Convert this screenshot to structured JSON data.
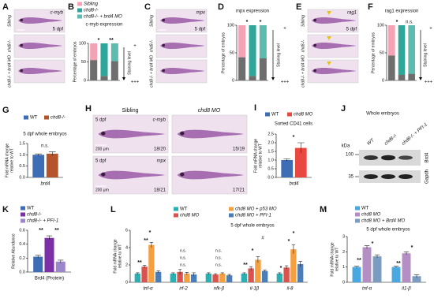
{
  "images": {
    "A": {
      "panel": "A",
      "marker": "c-myb",
      "age": "5 dpf",
      "rows": [
        "Sibling",
        "chd8-/-",
        "chd8-/- + brd4 MO"
      ]
    },
    "C": {
      "panel": "C",
      "marker": "mpx",
      "age": "5 dpf",
      "rows": [
        "Sibling",
        "chd8-/-",
        "chd8-/- + brd4 MO"
      ]
    },
    "E": {
      "panel": "E",
      "marker": "rag1",
      "age": "5 dpf",
      "rows": [
        "Sibling",
        "chd8-/-",
        "chd8-/- + brd4 MO"
      ]
    },
    "H": {
      "panel": "H",
      "columns": [
        "Sibling",
        "chd8 MO"
      ],
      "rows": [
        {
          "age": "5 dpf",
          "marker": "c-myb",
          "scale": "200 μm",
          "counts": [
            "18/20",
            "15/19"
          ]
        },
        {
          "age": "5 dpf",
          "marker": "mpx",
          "scale": "200 μm",
          "counts": [
            "18/21",
            "17/21"
          ]
        }
      ]
    },
    "J": {
      "panel": "J",
      "title": "Whole embryos",
      "unit": "kDa",
      "lanes": [
        "WT",
        "chd8-/-",
        "chd8-/- + PFI-1"
      ],
      "sizes": [
        100,
        35
      ],
      "bands": [
        "Brd4",
        "Gapdh"
      ]
    }
  },
  "chart_data": [
    {
      "panel": "B",
      "type": "bar",
      "stacked": true,
      "title": "c-myb expression",
      "ylabel": "Percentage of embryos",
      "categories": [
        null,
        null,
        null
      ],
      "legend": [
        {
          "name": "Sibling",
          "color": "#f4a3b4"
        },
        {
          "name": "chd8-/-",
          "color": "#2ea79a"
        },
        {
          "name": "chd8-/- + brd4 MO",
          "color": "#5dbbb0"
        }
      ],
      "series": [
        {
          "color": "#6e6e6e",
          "values": [
            55,
            12,
            52
          ]
        },
        {
          "colors": [
            "#f4a3b4",
            "#2ea79a",
            "#5dbbb0"
          ],
          "values": [
            45,
            88,
            48
          ]
        }
      ],
      "ylim": [
        0,
        100
      ],
      "yticks": [
        0,
        50,
        100
      ],
      "annotations": [
        "*",
        "**",
        "Staining level",
        "+",
        "+++"
      ]
    },
    {
      "panel": "D",
      "type": "bar",
      "stacked": true,
      "title": "mpx expression",
      "ylabel": "Percentage of embryos",
      "categories": [
        null,
        null,
        null
      ],
      "series": [
        {
          "color": "#6e6e6e",
          "values": [
            42,
            8,
            40
          ]
        },
        {
          "colors": [
            "#f4a3b4",
            "#2ea79a",
            "#5dbbb0"
          ],
          "values": [
            58,
            92,
            60
          ]
        }
      ],
      "ylim": [
        0,
        100
      ],
      "yticks": [
        0,
        50,
        100
      ],
      "annotations": [
        "*",
        "*",
        "Staining level",
        "+",
        "+++"
      ]
    },
    {
      "panel": "F",
      "type": "bar",
      "stacked": true,
      "title": "rag1 expression",
      "ylabel": "Percentage of embryos",
      "categories": [
        null,
        null,
        null
      ],
      "series": [
        {
          "color": "#6e6e6e",
          "values": [
            45,
            10,
            12
          ]
        },
        {
          "colors": [
            "#f4a3b4",
            "#2ea79a",
            "#5dbbb0"
          ],
          "values": [
            55,
            90,
            88
          ]
        }
      ],
      "ylim": [
        0,
        100
      ],
      "yticks": [
        0,
        50,
        100
      ],
      "annotations": [
        "*",
        "n.s.",
        "Staining level",
        "+",
        "+++"
      ]
    },
    {
      "panel": "G",
      "type": "bar",
      "title": "5 dpf whole embryos",
      "ylabel": [
        "Fold mRNA change",
        "relative to WT"
      ],
      "categories": [
        "brd4"
      ],
      "series": [
        {
          "name": "WT",
          "color": "#3d6db5",
          "values": [
            1.0
          ],
          "errors": [
            0.04
          ]
        },
        {
          "name": "chd8-/-",
          "color": "#b5532a",
          "values": [
            1.05
          ],
          "errors": [
            0.08
          ]
        }
      ],
      "ylim": [
        0,
        1.5
      ],
      "yticks": [
        {
          "value": 0,
          "label": "0.0"
        },
        {
          "value": 0.5,
          "label": "0.5"
        },
        {
          "value": 1,
          "label": "1.0"
        },
        {
          "value": 1.5,
          "label": "1.5"
        }
      ],
      "annotations": [
        "n.s."
      ]
    },
    {
      "panel": "I",
      "type": "bar",
      "title": "Sorted CD41 cells",
      "ylabel": [
        "Fold mRNA change",
        "relative to WT"
      ],
      "categories": [
        "brd4"
      ],
      "series": [
        {
          "name": "WT",
          "color": "#3d6db5",
          "values": [
            1.0
          ],
          "errors": [
            0.08
          ]
        },
        {
          "name": "chd8 MO",
          "color": "#e8483f",
          "values": [
            1.7
          ],
          "errors": [
            0.3
          ]
        }
      ],
      "ylim": [
        0,
        2.5
      ],
      "yticks": [
        {
          "value": 0,
          "label": "0.0"
        },
        {
          "value": 0.5,
          "label": "0.5"
        },
        {
          "value": 1,
          "label": "1.0"
        },
        {
          "value": 1.5,
          "label": "1.5"
        },
        {
          "value": 2,
          "label": "2.0"
        },
        {
          "value": 2.5,
          "label": "2.5"
        }
      ],
      "annotations": [
        "*"
      ]
    },
    {
      "panel": "K",
      "type": "bar",
      "ylabel": "Relative Abundance",
      "categories": [
        "Brd4 (Protein)"
      ],
      "series": [
        {
          "name": "WT",
          "color": "#3d6db5",
          "values": [
            0.22
          ],
          "errors": [
            0.02
          ]
        },
        {
          "name": "chd8-/-",
          "color": "#7b2fa8",
          "values": [
            0.49
          ],
          "errors": [
            0.03
          ]
        },
        {
          "name": "chd8-/- + PFI-1",
          "color": "#9b86c9",
          "values": [
            0.15
          ],
          "errors": [
            0.02
          ]
        }
      ],
      "ylim": [
        0,
        0.6
      ],
      "yticks": [
        {
          "value": 0,
          "label": "0.0"
        },
        {
          "value": 0.2,
          "label": "0.2"
        },
        {
          "value": 0.4,
          "label": "0.4"
        },
        {
          "value": 0.6,
          "label": "0.6"
        }
      ],
      "annotations": [
        "**",
        "**"
      ]
    },
    {
      "panel": "L",
      "type": "bar",
      "title": "5 dpf whole embryos",
      "ylabel": [
        "Fold mRNA change",
        "relative to WT"
      ],
      "categories": [
        "tnf-α",
        "irf-2",
        "nfk-β",
        "il-1β",
        "il-8"
      ],
      "series": [
        {
          "name": "WT",
          "color": "#2ab0b0",
          "values": [
            1,
            1,
            1,
            1,
            1
          ],
          "errors": [
            0.1,
            0.1,
            0.1,
            0.1,
            0.1
          ]
        },
        {
          "name": "chd8 MO",
          "color": "#d9534f",
          "values": [
            1.8,
            1.2,
            0.9,
            1.6,
            1.7
          ],
          "errors": [
            0.15,
            0.3,
            0.1,
            0.2,
            0.2
          ]
        },
        {
          "name": "chd8 MO + p53 MO",
          "color": "#f5a040",
          "values": [
            4.3,
            1.0,
            1.0,
            2.6,
            3.8
          ],
          "errors": [
            0.3,
            0.15,
            0.1,
            0.35,
            0.5
          ]
        },
        {
          "name": "chd8 MO + PFI-1",
          "color": "#4a7ebb",
          "values": [
            1.2,
            0.9,
            0.8,
            1.3,
            2.1
          ],
          "errors": [
            0.1,
            0.2,
            0.1,
            0.1,
            0.3
          ]
        }
      ],
      "ylim": [
        0,
        6
      ],
      "yticks": [
        0,
        2,
        4,
        6
      ],
      "annotations": [
        "**",
        "*",
        "**",
        "n.s.",
        "n.s.",
        "n.s.",
        "n.s.",
        "n.s.",
        "n.s.",
        "**",
        "*",
        "#",
        "*",
        "*",
        "*"
      ]
    },
    {
      "panel": "M",
      "type": "bar",
      "title": "5 dpf whole embryos",
      "ylabel": [
        "Fold mRNA change",
        "relative to WT"
      ],
      "categories": [
        "tnf-α",
        "il1-β"
      ],
      "series": [
        {
          "name": "WT",
          "color": "#4aa8e0",
          "values": [
            1,
            1
          ],
          "errors": [
            0.05,
            0.05
          ]
        },
        {
          "name": "chd8 MO",
          "color": "#b48fc4",
          "values": [
            2.3,
            1.9
          ],
          "errors": [
            0.1,
            0.1
          ]
        },
        {
          "name": "chd8 MO + Brd4 MO",
          "color": "#7a9cc0",
          "values": [
            1.7,
            0.4
          ],
          "errors": [
            0.1,
            0.1
          ]
        }
      ],
      "ylim": [
        0,
        3
      ],
      "yticks": [
        0,
        1,
        2,
        3
      ],
      "annotations": [
        "**",
        "*",
        "**",
        "*"
      ]
    }
  ]
}
